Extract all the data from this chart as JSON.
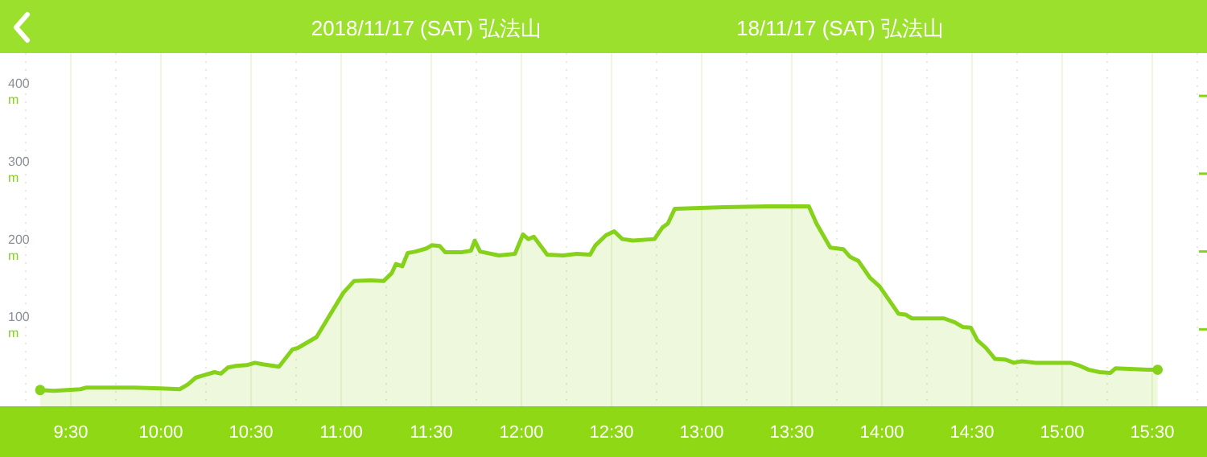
{
  "chart_data": {
    "type": "area",
    "title": "2018/11/17 (SAT) 弘法山",
    "subtitle": "18/11/17 (SAT) 弘法山",
    "x": [
      9.33,
      9.405,
      9.554,
      9.583,
      9.851,
      10.0,
      10.104,
      10.149,
      10.194,
      10.238,
      10.297,
      10.333,
      10.372,
      10.417,
      10.476,
      10.521,
      10.565,
      10.655,
      10.729,
      10.759,
      10.863,
      11.012,
      11.071,
      11.161,
      11.235,
      11.28,
      11.304,
      11.339,
      11.369,
      11.413,
      11.473,
      11.503,
      11.547,
      11.578,
      11.667,
      11.72,
      11.741,
      11.771,
      11.875,
      11.964,
      12.009,
      12.038,
      12.069,
      12.143,
      12.232,
      12.306,
      12.381,
      12.411,
      12.47,
      12.515,
      12.56,
      12.619,
      12.738,
      12.783,
      12.813,
      12.851,
      13.125,
      13.363,
      13.595,
      13.637,
      13.714,
      13.786,
      13.824,
      13.869,
      13.935,
      13.988,
      14.092,
      14.131,
      14.167,
      14.345,
      14.405,
      14.449,
      14.494,
      14.53,
      14.578,
      14.628,
      14.688,
      14.732,
      14.777,
      14.851,
      15.045,
      15.089,
      15.149,
      15.208,
      15.268,
      15.297,
      15.476,
      15.53
    ],
    "series": [
      {
        "color": "#86d21a",
        "values": [
          22,
          21,
          23,
          25,
          25,
          24,
          23,
          29,
          38,
          41,
          45,
          43,
          51,
          53,
          54,
          57,
          55,
          52,
          74,
          76,
          90,
          147,
          162,
          163,
          162,
          172,
          184,
          181,
          198,
          200,
          204,
          208,
          207,
          199,
          199,
          201,
          214,
          200,
          195,
          197,
          222,
          216,
          219,
          196,
          195,
          197,
          196,
          208,
          221,
          226,
          216,
          214,
          216,
          231,
          236,
          255,
          257,
          258,
          258,
          236,
          205,
          203,
          193,
          188,
          166,
          155,
          120,
          119,
          114,
          114,
          109,
          103,
          102,
          86,
          76,
          62,
          61,
          57,
          59,
          57,
          57,
          54,
          48,
          45,
          44,
          50,
          48,
          48
        ]
      }
    ],
    "xlim": [
      9.107,
      15.804
    ],
    "ylim": [
      0,
      455
    ],
    "xticks": [
      {
        "value": 9.5,
        "label": "9:30"
      },
      {
        "value": 10,
        "label": "10:00"
      },
      {
        "value": 10.5,
        "label": "10:30"
      },
      {
        "value": 11,
        "label": "11:00"
      },
      {
        "value": 11.5,
        "label": "11:30"
      },
      {
        "value": 12,
        "label": "12:00"
      },
      {
        "value": 12.5,
        "label": "12:30"
      },
      {
        "value": 13,
        "label": "13:00"
      },
      {
        "value": 13.5,
        "label": "13:30"
      },
      {
        "value": 14,
        "label": "14:00"
      },
      {
        "value": 14.5,
        "label": "14:30"
      },
      {
        "value": 15,
        "label": "15:00"
      },
      {
        "value": 15.5,
        "label": "15:30"
      }
    ],
    "yticks": [
      {
        "value": 100,
        "label": "100\nm"
      },
      {
        "value": 200,
        "label": "200\nm"
      },
      {
        "value": 300,
        "label": "300\nm"
      },
      {
        "value": 400,
        "label": "400\nm"
      }
    ],
    "grid": "x"
  }
}
